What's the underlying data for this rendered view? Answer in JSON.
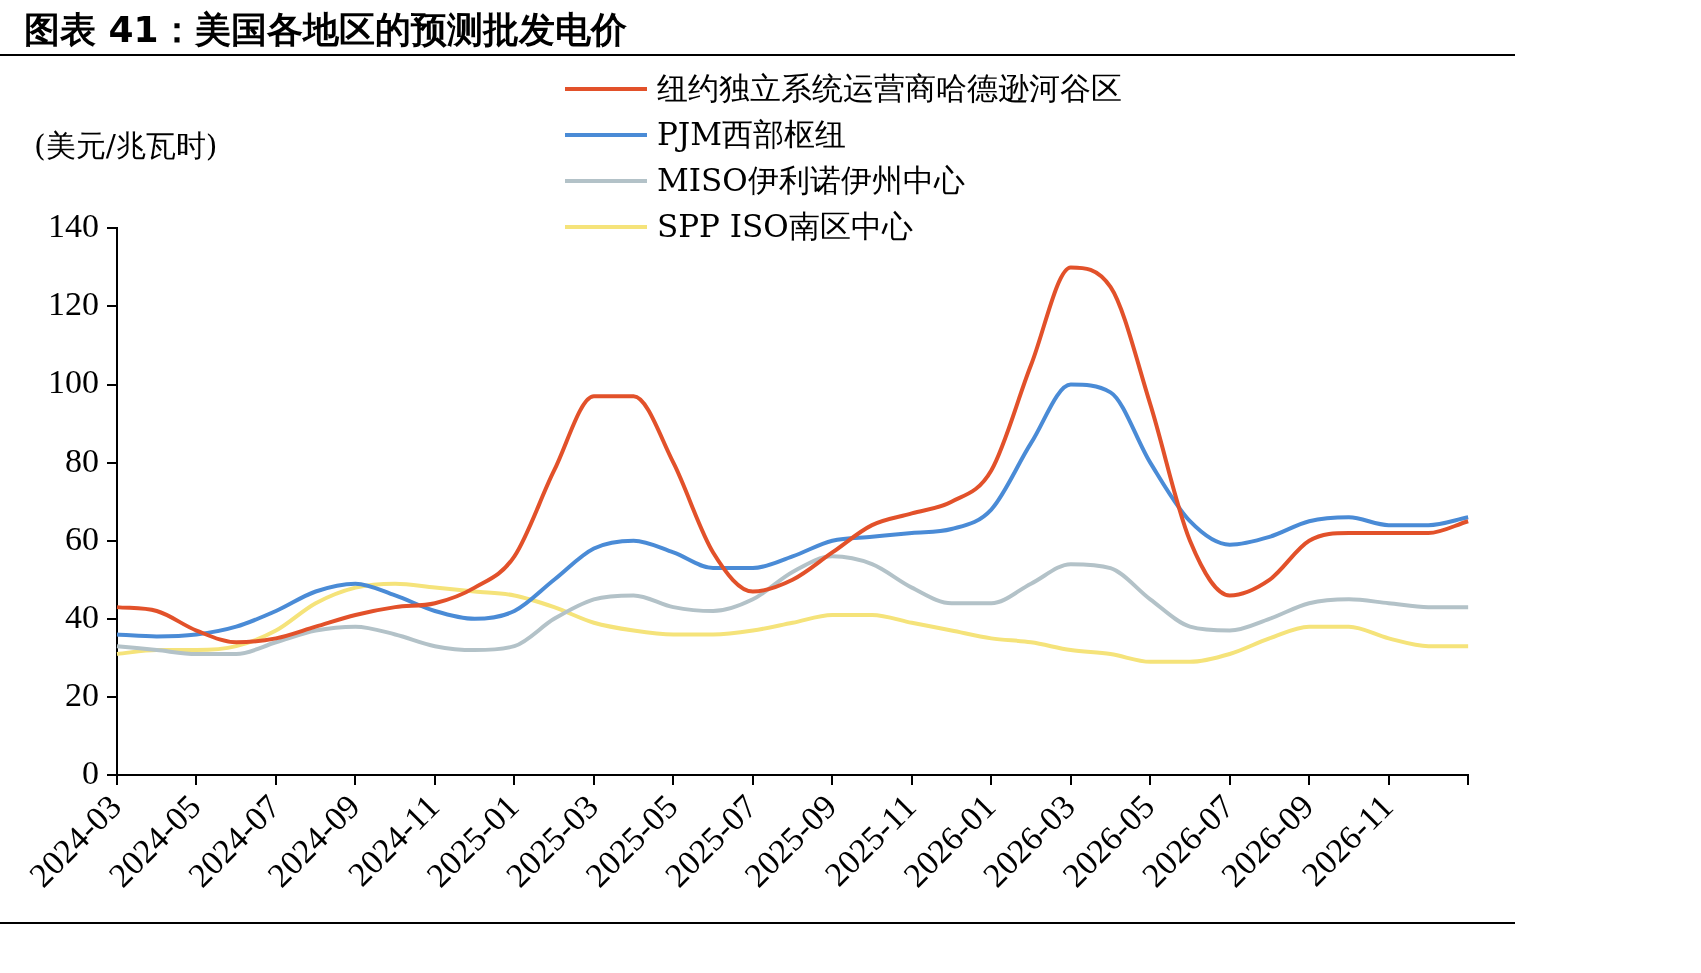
{
  "chart_data": {
    "type": "line",
    "title": "图表 41：美国各地区的预测批发电价",
    "ylabel": "(美元/兆瓦时)",
    "categories": [
      "2024-03",
      null,
      "2024-05",
      null,
      "2024-07",
      null,
      "2024-09",
      null,
      "2024-11",
      null,
      "2025-01",
      null,
      "2025-03",
      null,
      "2025-05",
      null,
      "2025-07",
      null,
      "2025-09",
      null,
      "2025-11",
      null,
      "2026-01",
      null,
      "2026-03",
      null,
      "2026-05",
      null,
      "2026-07",
      null,
      "2026-09",
      null,
      "2026-11",
      null,
      null
    ],
    "series": [
      {
        "name": "纽约独立系统运营商哈德逊河谷区",
        "color": "#e2512a",
        "values": [
          43,
          42,
          37,
          34,
          35,
          38,
          41,
          43,
          44,
          48,
          56,
          78,
          97,
          97,
          80,
          57,
          47,
          50,
          57,
          64,
          67,
          70,
          78,
          105,
          130,
          125,
          95,
          60,
          46,
          50,
          60,
          62,
          62,
          62,
          65
        ]
      },
      {
        "name": "PJM西部枢纽",
        "color": "#4a8bd6",
        "values": [
          36,
          35.5,
          36,
          38,
          42,
          47,
          49,
          46,
          42,
          40,
          42,
          50,
          58,
          60,
          57,
          53,
          53,
          56,
          60,
          61,
          62,
          63,
          68,
          85,
          100,
          98,
          80,
          65,
          59,
          61,
          65,
          66,
          64,
          64,
          66
        ]
      },
      {
        "name": "MISO伊利诺伊州中心",
        "color": "#b3c2c8",
        "values": [
          33,
          32,
          31,
          31,
          34,
          37,
          38,
          36,
          33,
          32,
          33,
          40,
          45,
          46,
          43,
          42,
          45,
          52,
          56,
          54,
          48,
          44,
          44,
          49,
          54,
          53,
          45,
          38,
          37,
          40,
          44,
          45,
          44,
          43,
          43
        ]
      },
      {
        "name": "SPP ISO南区中心",
        "color": "#f5e37a",
        "values": [
          31,
          32,
          32,
          33,
          37,
          44,
          48,
          49,
          48,
          47,
          46,
          43,
          39,
          37,
          36,
          36,
          37,
          39,
          41,
          41,
          39,
          37,
          35,
          34,
          32,
          31,
          29,
          29,
          31,
          35,
          38,
          38,
          35,
          33,
          33
        ]
      }
    ],
    "ylim": [
      0,
      140
    ],
    "yticks": [
      0,
      20,
      40,
      60,
      80,
      100,
      120,
      140
    ],
    "grid": false,
    "legend": "top",
    "marker": "none",
    "line_style": "solid"
  }
}
